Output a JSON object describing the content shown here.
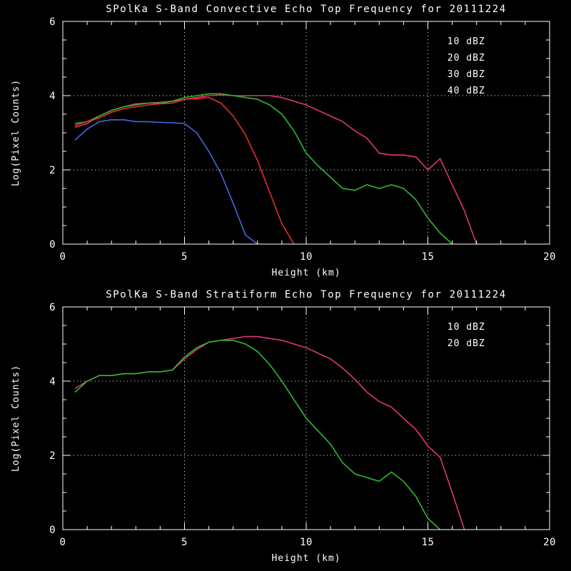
{
  "page": {
    "background": "#000000",
    "text_color": "#ffffff"
  },
  "chart_data": [
    {
      "type": "line",
      "title": "SPolKa S-Band Convective Echo Top Frequency for 20111224",
      "xlabel": "Height (km)",
      "ylabel": "Log(Pixel Counts)",
      "xlim": [
        0,
        20
      ],
      "ylim": [
        0,
        6
      ],
      "xticks": [
        0,
        5,
        10,
        15,
        20
      ],
      "yticks": [
        0,
        2,
        4,
        6
      ],
      "minor_x": 1,
      "minor_y": 0.5,
      "grid_x": [
        5,
        10,
        15
      ],
      "grid_y": [
        2,
        4
      ],
      "legend_position": "top-right-inside",
      "series": [
        {
          "name": "10 dBZ",
          "color": "#e0347c",
          "x_start": 0.5,
          "x_step": 0.5,
          "y": [
            3.15,
            3.25,
            3.45,
            3.6,
            3.7,
            3.78,
            3.8,
            3.82,
            3.85,
            3.9,
            3.95,
            4.0,
            4.02,
            4.0,
            4.0,
            4.0,
            4.0,
            3.95,
            3.85,
            3.75,
            3.6,
            3.45,
            3.3,
            3.05,
            2.85,
            2.45,
            2.4,
            2.4,
            2.35,
            2.0,
            2.3,
            1.6,
            0.9,
            0.0
          ]
        },
        {
          "name": "20 dBZ",
          "color": "#2eb82e",
          "x_start": 0.5,
          "x_step": 0.5,
          "y": [
            3.25,
            3.3,
            3.45,
            3.6,
            3.7,
            3.75,
            3.8,
            3.8,
            3.85,
            3.95,
            4.0,
            4.05,
            4.05,
            4.0,
            3.95,
            3.9,
            3.75,
            3.5,
            3.05,
            2.45,
            2.1,
            1.8,
            1.5,
            1.45,
            1.6,
            1.5,
            1.6,
            1.5,
            1.2,
            0.7,
            0.3,
            0.0
          ]
        },
        {
          "name": "30 dBZ",
          "color": "#e03028",
          "x_start": 0.5,
          "x_step": 0.5,
          "y": [
            3.2,
            3.3,
            3.4,
            3.55,
            3.65,
            3.7,
            3.75,
            3.78,
            3.8,
            3.9,
            3.92,
            3.95,
            3.8,
            3.45,
            2.95,
            2.25,
            1.4,
            0.55,
            0.0
          ]
        },
        {
          "name": "40 dBZ",
          "color": "#4169e1",
          "x_start": 0.5,
          "x_step": 0.5,
          "y": [
            2.8,
            3.1,
            3.3,
            3.35,
            3.35,
            3.3,
            3.3,
            3.28,
            3.27,
            3.25,
            3.0,
            2.5,
            1.9,
            1.1,
            0.25,
            0.0
          ]
        }
      ]
    },
    {
      "type": "line",
      "title": "SPolKa S-Band Stratiform Echo Top Frequency for 20111224",
      "xlabel": "Height (km)",
      "ylabel": "Log(Pixel Counts)",
      "xlim": [
        0,
        20
      ],
      "ylim": [
        0,
        6
      ],
      "xticks": [
        0,
        5,
        10,
        15,
        20
      ],
      "yticks": [
        0,
        2,
        4,
        6
      ],
      "minor_x": 1,
      "minor_y": 0.5,
      "grid_x": [
        5,
        10,
        15
      ],
      "grid_y": [
        2,
        4
      ],
      "legend_position": "top-right-inside",
      "series": [
        {
          "name": "10 dBZ",
          "color": "#e0347c",
          "x_start": 0.5,
          "x_step": 0.5,
          "y": [
            3.8,
            4.0,
            4.15,
            4.15,
            4.2,
            4.2,
            4.25,
            4.25,
            4.3,
            4.6,
            4.85,
            5.05,
            5.1,
            5.15,
            5.2,
            5.2,
            5.15,
            5.1,
            5.0,
            4.9,
            4.75,
            4.6,
            4.35,
            4.05,
            3.7,
            3.45,
            3.3,
            3.0,
            2.7,
            2.25,
            1.95,
            1.0,
            0.0
          ]
        },
        {
          "name": "20 dBZ",
          "color": "#2eb82e",
          "x_start": 0.5,
          "x_step": 0.5,
          "y": [
            3.7,
            4.0,
            4.15,
            4.15,
            4.2,
            4.2,
            4.25,
            4.25,
            4.3,
            4.65,
            4.9,
            5.05,
            5.1,
            5.1,
            5.0,
            4.8,
            4.45,
            4.0,
            3.5,
            3.0,
            2.65,
            2.3,
            1.8,
            1.5,
            1.4,
            1.3,
            1.55,
            1.3,
            0.9,
            0.3,
            0.0
          ]
        }
      ]
    }
  ]
}
